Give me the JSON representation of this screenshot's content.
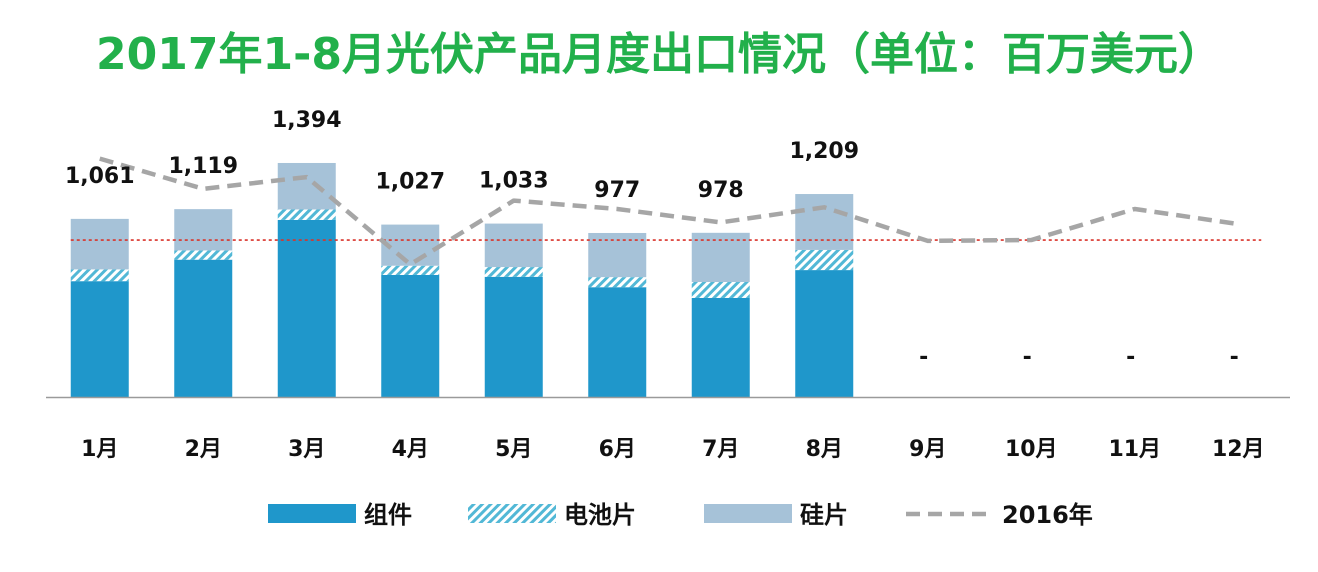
{
  "title": "2017年1-8月光伏产品月度出口情况（单位：百万美元）",
  "chart_data": {
    "type": "bar",
    "stacked": true,
    "categories": [
      "1月",
      "2月",
      "3月",
      "4月",
      "5月",
      "6月",
      "7月",
      "8月",
      "9月",
      "10月",
      "11月",
      "12月"
    ],
    "series": [
      {
        "name": "组件",
        "values": [
          690,
          818,
          1055,
          727,
          716,
          654,
          590,
          756,
          null,
          null,
          null,
          null
        ],
        "color": "#1F97CB"
      },
      {
        "name": "电池片",
        "values": [
          70,
          55,
          62,
          55,
          58,
          60,
          95,
          120,
          null,
          null,
          null,
          null
        ],
        "color": "#7CC6DE",
        "pattern": "hatch"
      },
      {
        "name": "硅片",
        "values": [
          301,
          246,
          277,
          245,
          259,
          263,
          293,
          333,
          null,
          null,
          null,
          null
        ],
        "color": "#A6C2D8"
      }
    ],
    "totals": [
      "1,061",
      "1,119",
      "1,394",
      "1,027",
      "1,033",
      "977",
      "978",
      "1,209",
      "-",
      "-",
      "-",
      "-"
    ],
    "line_2016": {
      "name": "2016年",
      "values": [
        1420,
        1240,
        1310,
        790,
        1170,
        1120,
        1040,
        1130,
        930,
        935,
        1120,
        1030
      ],
      "color": "#A6A6A6",
      "style": "dashed"
    },
    "reference_line": {
      "value": 935,
      "color": "#D9342B",
      "style": "dotted"
    },
    "ylim": [
      0,
      1650
    ],
    "legend_position": "bottom"
  }
}
